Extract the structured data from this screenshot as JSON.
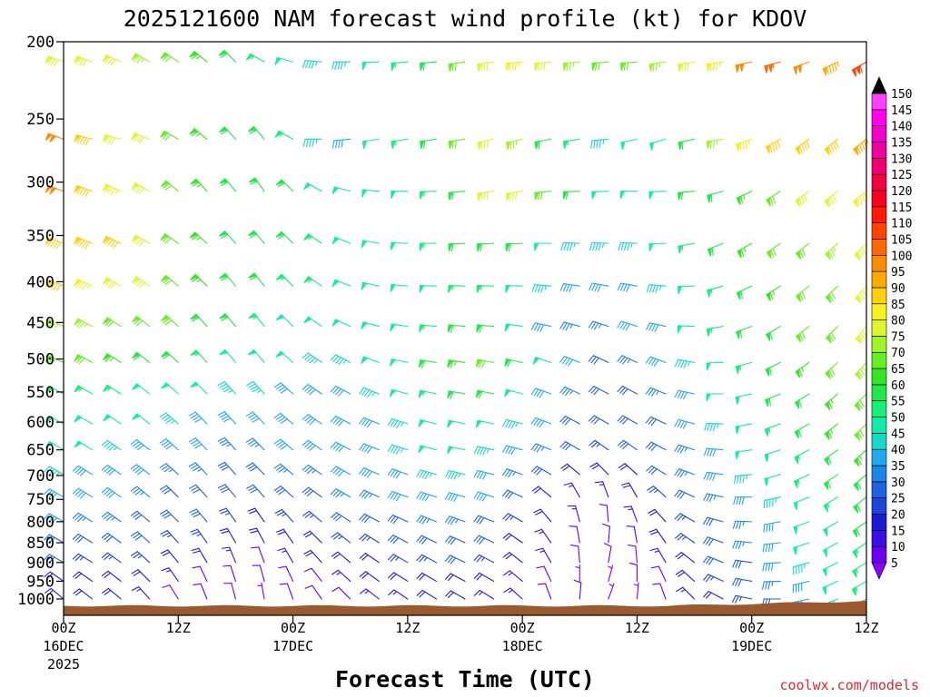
{
  "chart_data": {
    "type": "wind-barb-time-height",
    "title": "2025121600 NAM forecast wind profile (kt) for KDOV",
    "xlabel": "Forecast Time (UTC)",
    "ylabel": "",
    "credit": "coolwx.com/models",
    "units": "kt",
    "y_ticks": [
      200,
      250,
      300,
      350,
      400,
      450,
      500,
      550,
      600,
      650,
      700,
      750,
      800,
      850,
      900,
      950,
      1000
    ],
    "y_range": [
      200,
      1050
    ],
    "x_range_hours": [
      0,
      84
    ],
    "x_ticks": [
      {
        "hour": 0,
        "label": "00Z",
        "date": "16DEC",
        "year": "2025"
      },
      {
        "hour": 12,
        "label": "12Z",
        "date": "",
        "year": ""
      },
      {
        "hour": 24,
        "label": "00Z",
        "date": "17DEC",
        "year": ""
      },
      {
        "hour": 36,
        "label": "12Z",
        "date": "",
        "year": ""
      },
      {
        "hour": 48,
        "label": "00Z",
        "date": "18DEC",
        "year": ""
      },
      {
        "hour": 60,
        "label": "12Z",
        "date": "",
        "year": ""
      },
      {
        "hour": 72,
        "label": "00Z",
        "date": "19DEC",
        "year": ""
      },
      {
        "hour": 84,
        "label": "12Z",
        "date": "",
        "year": ""
      }
    ],
    "colorbar": {
      "levels": [
        5,
        10,
        15,
        20,
        25,
        30,
        35,
        40,
        45,
        50,
        55,
        60,
        65,
        70,
        75,
        80,
        85,
        90,
        95,
        100,
        105,
        110,
        115,
        120,
        125,
        130,
        135,
        140,
        145,
        150
      ],
      "colors": [
        "#8a00ff",
        "#6a00ee",
        "#3a10e0",
        "#1b1bd6",
        "#1c45d9",
        "#1e62e0",
        "#1f86e8",
        "#21a8ef",
        "#18d8c8",
        "#12ecaa",
        "#15f07a",
        "#22e84a",
        "#33e820",
        "#66ef22",
        "#a0f528",
        "#e0f530",
        "#f5f020",
        "#ffd010",
        "#ffaa00",
        "#ff8c00",
        "#ff6a00",
        "#ff4400",
        "#ff1a00",
        "#f80020",
        "#f00040",
        "#ee0070",
        "#f000a0",
        "#f000c8",
        "#ff00f0",
        "#ff40ff"
      ]
    },
    "terrain_pressure_hpa": 1020,
    "barb_levels": [
      212,
      265,
      308,
      358,
      405,
      455,
      505,
      553,
      603,
      650,
      698,
      745,
      800,
      850,
      900,
      950,
      1000
    ],
    "barb_hours": [
      0,
      3,
      6,
      9,
      12,
      15,
      18,
      21,
      24,
      27,
      30,
      33,
      36,
      39,
      42,
      45,
      48,
      51,
      54,
      57,
      60,
      63,
      66,
      69,
      72,
      75,
      78,
      81,
      84
    ],
    "wind_speed_kt": [
      [
        82,
        82,
        80,
        75,
        70,
        65,
        60,
        55,
        50,
        45,
        45,
        48,
        55,
        62,
        72,
        78,
        85,
        82,
        75,
        70,
        72,
        75,
        80,
        85,
        100,
        105,
        100,
        95,
        108
      ],
      [
        100,
        88,
        82,
        78,
        70,
        65,
        60,
        60,
        55,
        45,
        42,
        48,
        55,
        60,
        72,
        78,
        75,
        62,
        55,
        45,
        48,
        52,
        62,
        75,
        85,
        92,
        90,
        88,
        95
      ],
      [
        100,
        90,
        85,
        78,
        70,
        65,
        62,
        60,
        58,
        52,
        50,
        50,
        52,
        55,
        62,
        78,
        80,
        72,
        62,
        50,
        48,
        50,
        58,
        60,
        65,
        72,
        78,
        82,
        85
      ],
      [
        92,
        90,
        88,
        80,
        72,
        65,
        60,
        60,
        58,
        55,
        52,
        52,
        52,
        55,
        60,
        62,
        58,
        50,
        45,
        45,
        45,
        48,
        55,
        60,
        65,
        70,
        72,
        75,
        80
      ],
      [
        88,
        85,
        82,
        78,
        72,
        65,
        60,
        58,
        55,
        55,
        52,
        50,
        50,
        52,
        55,
        55,
        50,
        45,
        40,
        40,
        42,
        45,
        50,
        55,
        60,
        65,
        70,
        72,
        80
      ],
      [
        75,
        75,
        72,
        70,
        68,
        62,
        58,
        55,
        52,
        50,
        48,
        48,
        50,
        55,
        60,
        62,
        50,
        42,
        35,
        35,
        38,
        42,
        48,
        55,
        60,
        62,
        68,
        72,
        82
      ],
      [
        68,
        68,
        65,
        62,
        58,
        55,
        52,
        50,
        48,
        45,
        45,
        48,
        52,
        58,
        65,
        72,
        60,
        50,
        40,
        32,
        35,
        40,
        45,
        50,
        55,
        60,
        65,
        70,
        75
      ],
      [
        55,
        55,
        55,
        52,
        50,
        48,
        45,
        45,
        42,
        42,
        42,
        45,
        50,
        55,
        58,
        58,
        50,
        40,
        35,
        30,
        32,
        35,
        42,
        48,
        52,
        58,
        62,
        65,
        68
      ],
      [
        52,
        52,
        50,
        48,
        45,
        42,
        40,
        40,
        40,
        40,
        40,
        42,
        45,
        50,
        52,
        50,
        45,
        38,
        32,
        28,
        30,
        32,
        38,
        45,
        50,
        55,
        62,
        65,
        70
      ],
      [
        48,
        48,
        45,
        42,
        40,
        38,
        36,
        36,
        38,
        40,
        40,
        42,
        45,
        48,
        48,
        45,
        40,
        35,
        30,
        25,
        28,
        32,
        36,
        42,
        48,
        52,
        55,
        60,
        65
      ],
      [
        45,
        42,
        40,
        38,
        36,
        34,
        32,
        32,
        34,
        36,
        38,
        40,
        42,
        45,
        45,
        42,
        35,
        28,
        22,
        20,
        22,
        28,
        34,
        40,
        45,
        50,
        55,
        58,
        62
      ],
      [
        42,
        40,
        38,
        35,
        32,
        30,
        28,
        28,
        30,
        32,
        34,
        36,
        38,
        40,
        40,
        38,
        30,
        22,
        15,
        15,
        18,
        24,
        30,
        35,
        40,
        45,
        50,
        55,
        58
      ],
      [
        38,
        36,
        34,
        32,
        30,
        28,
        25,
        22,
        24,
        26,
        28,
        30,
        32,
        34,
        35,
        32,
        25,
        18,
        14,
        12,
        15,
        20,
        26,
        32,
        36,
        42,
        48,
        52,
        58
      ],
      [
        32,
        30,
        28,
        28,
        26,
        24,
        20,
        18,
        20,
        22,
        24,
        26,
        28,
        30,
        32,
        28,
        22,
        15,
        12,
        10,
        12,
        18,
        24,
        30,
        35,
        42,
        48,
        52,
        56
      ],
      [
        28,
        26,
        25,
        24,
        22,
        18,
        14,
        12,
        15,
        18,
        20,
        22,
        24,
        26,
        28,
        25,
        20,
        14,
        10,
        8,
        10,
        15,
        22,
        28,
        32,
        40,
        46,
        52,
        56
      ],
      [
        18,
        20,
        20,
        20,
        15,
        10,
        8,
        8,
        10,
        12,
        15,
        18,
        20,
        22,
        22,
        20,
        15,
        10,
        6,
        6,
        8,
        12,
        18,
        24,
        30,
        36,
        42,
        50,
        55
      ],
      [
        15,
        18,
        18,
        15,
        12,
        10,
        8,
        6,
        8,
        10,
        12,
        14,
        15,
        18,
        18,
        16,
        14,
        10,
        8,
        6,
        6,
        10,
        15,
        20,
        25,
        32,
        40,
        46,
        52
      ]
    ],
    "wind_direction_deg": [
      [
        290,
        290,
        295,
        300,
        305,
        310,
        315,
        300,
        285,
        275,
        270,
        268,
        265,
        265,
        262,
        262,
        265,
        265,
        265,
        265,
        265,
        262,
        262,
        262,
        258,
        255,
        250,
        245,
        240
      ],
      [
        290,
        285,
        285,
        292,
        300,
        310,
        318,
        320,
        300,
        270,
        265,
        262,
        262,
        262,
        262,
        258,
        258,
        260,
        262,
        265,
        258,
        255,
        258,
        262,
        252,
        242,
        235,
        232,
        232
      ],
      [
        290,
        290,
        295,
        300,
        310,
        318,
        320,
        325,
        315,
        300,
        285,
        275,
        270,
        268,
        265,
        262,
        262,
        265,
        268,
        268,
        270,
        268,
        265,
        255,
        245,
        238,
        235,
        232,
        232
      ],
      [
        290,
        292,
        295,
        300,
        305,
        312,
        318,
        320,
        315,
        305,
        292,
        280,
        272,
        270,
        268,
        268,
        268,
        270,
        272,
        272,
        272,
        268,
        260,
        248,
        240,
        235,
        232,
        228,
        226
      ],
      [
        292,
        295,
        300,
        305,
        310,
        315,
        320,
        322,
        315,
        305,
        292,
        282,
        275,
        272,
        272,
        272,
        272,
        275,
        278,
        280,
        280,
        275,
        268,
        255,
        245,
        238,
        232,
        226,
        222
      ],
      [
        295,
        298,
        302,
        308,
        312,
        318,
        320,
        322,
        315,
        305,
        295,
        285,
        278,
        275,
        275,
        275,
        278,
        282,
        285,
        288,
        288,
        282,
        272,
        260,
        250,
        240,
        232,
        225,
        220
      ],
      [
        295,
        298,
        302,
        308,
        312,
        318,
        320,
        320,
        312,
        305,
        298,
        290,
        282,
        278,
        278,
        280,
        282,
        288,
        292,
        295,
        295,
        290,
        280,
        268,
        255,
        244,
        235,
        228,
        222
      ],
      [
        298,
        300,
        302,
        308,
        312,
        316,
        318,
        318,
        312,
        305,
        298,
        292,
        285,
        282,
        280,
        282,
        285,
        290,
        295,
        298,
        298,
        292,
        282,
        270,
        258,
        248,
        238,
        230,
        225
      ],
      [
        298,
        300,
        304,
        308,
        312,
        316,
        318,
        316,
        310,
        305,
        298,
        292,
        288,
        284,
        282,
        282,
        285,
        292,
        298,
        300,
        300,
        295,
        285,
        272,
        260,
        250,
        240,
        232,
        226
      ],
      [
        300,
        302,
        305,
        308,
        312,
        316,
        318,
        315,
        310,
        305,
        298,
        292,
        288,
        285,
        282,
        282,
        285,
        292,
        300,
        305,
        305,
        298,
        288,
        275,
        262,
        252,
        242,
        234,
        228
      ],
      [
        300,
        302,
        305,
        308,
        312,
        316,
        318,
        315,
        310,
        305,
        300,
        294,
        290,
        286,
        284,
        284,
        290,
        300,
        310,
        315,
        312,
        302,
        290,
        278,
        265,
        255,
        245,
        236,
        230
      ],
      [
        300,
        302,
        305,
        310,
        314,
        318,
        320,
        318,
        312,
        306,
        300,
        295,
        290,
        288,
        286,
        288,
        295,
        310,
        330,
        340,
        330,
        312,
        295,
        282,
        270,
        258,
        248,
        238,
        232
      ],
      [
        300,
        302,
        306,
        310,
        315,
        320,
        325,
        325,
        318,
        310,
        304,
        298,
        294,
        292,
        290,
        292,
        300,
        320,
        345,
        355,
        340,
        318,
        300,
        285,
        272,
        260,
        250,
        240,
        235
      ],
      [
        300,
        302,
        306,
        312,
        318,
        325,
        330,
        332,
        325,
        315,
        308,
        302,
        298,
        296,
        294,
        296,
        305,
        325,
        350,
        5,
        350,
        325,
        305,
        290,
        276,
        264,
        252,
        242,
        236
      ],
      [
        300,
        302,
        306,
        312,
        320,
        330,
        338,
        340,
        330,
        318,
        310,
        304,
        300,
        298,
        296,
        298,
        308,
        330,
        355,
        10,
        355,
        330,
        308,
        292,
        278,
        266,
        254,
        244,
        238
      ],
      [
        305,
        305,
        308,
        315,
        325,
        335,
        342,
        345,
        335,
        322,
        312,
        306,
        302,
        300,
        298,
        300,
        310,
        335,
        0,
        15,
        0,
        335,
        312,
        295,
        280,
        268,
        256,
        246,
        240
      ],
      [
        310,
        308,
        310,
        318,
        328,
        338,
        345,
        350,
        340,
        325,
        315,
        308,
        304,
        302,
        300,
        302,
        312,
        340,
        5,
        20,
        5,
        340,
        315,
        298,
        282,
        270,
        258,
        248,
        242
      ]
    ]
  }
}
